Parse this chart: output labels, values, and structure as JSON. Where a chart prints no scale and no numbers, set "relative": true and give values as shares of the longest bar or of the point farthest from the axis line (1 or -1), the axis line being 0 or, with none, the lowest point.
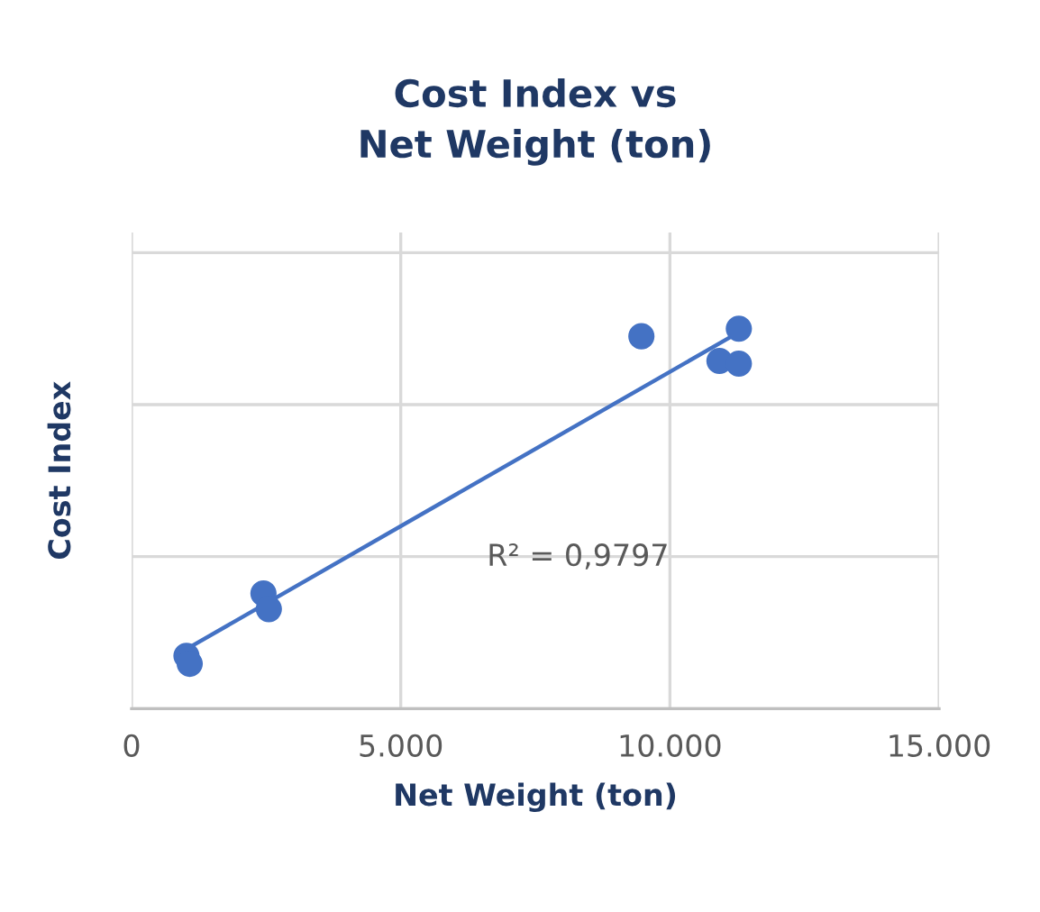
{
  "chart_data": {
    "type": "scatter",
    "title": "Cost Index vs\nNet Weight (ton)",
    "xlabel": "Net Weight (ton)",
    "ylabel": "Cost Index",
    "relative": true,
    "xlim": [
      0,
      15000
    ],
    "xticks": [
      0,
      {
        "value": 5000,
        "label": "5.000"
      },
      {
        "value": 10000,
        "label": "10.000"
      },
      {
        "value": 15000,
        "label": "15.000"
      }
    ],
    "tick_labels": "x",
    "grid": true,
    "series": [
      {
        "marker": "circle",
        "color": "#4472c4",
        "x": [
          1020,
          1080,
          2450,
          2550,
          9470,
          11280,
          10920,
          11280
        ],
        "values": [
          0.139,
          0.118,
          0.303,
          0.262,
          0.98,
          1.0,
          0.915,
          0.908
        ]
      },
      {
        "type": "line",
        "color": "#4472c4",
        "x": [
          1060,
          11150
        ],
        "values": [
          0.16,
          0.98
        ]
      }
    ],
    "annotations": [
      "R² = 0,9797"
    ]
  }
}
